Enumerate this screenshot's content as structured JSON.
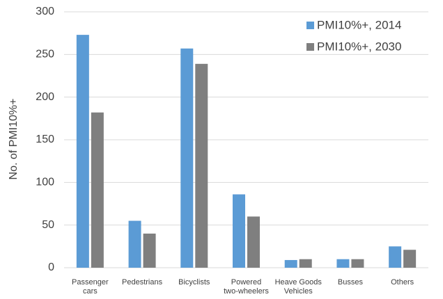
{
  "chart_data": {
    "type": "bar",
    "y_label": "No. of PMI10%+",
    "categories": [
      "Passenger\ncars",
      "Pedestrians",
      "Bicyclists",
      "Powered\ntwo-wheelers",
      "Heave Goods\nVehicles",
      "Busses",
      "Others"
    ],
    "series": [
      {
        "name": "PMI10%+, 2014",
        "color": "#5b9bd5",
        "values": [
          273,
          55,
          257,
          86,
          9,
          10,
          25
        ]
      },
      {
        "name": "PMI10%+, 2030",
        "color": "#7f7f7f",
        "values": [
          182,
          40,
          239,
          60,
          10,
          10,
          21
        ]
      }
    ],
    "ylim": [
      0,
      300
    ],
    "yticks": [
      0,
      50,
      100,
      150,
      200,
      250,
      300
    ],
    "grid": true,
    "legend": "top-right"
  }
}
